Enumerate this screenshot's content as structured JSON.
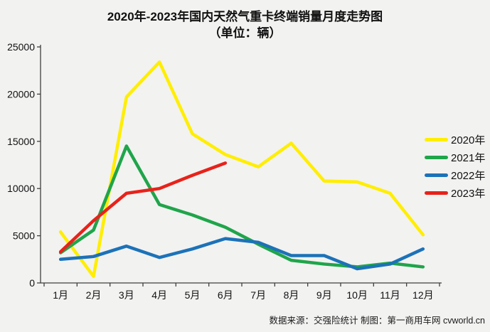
{
  "title": {
    "line1": "2020年-2023年国内天然气重卡终端销量月度走势图",
    "line2": "（单位：辆）"
  },
  "footer": {
    "text": "数据来源：交强险统计 制图：第一商用车网 cvworld.cn"
  },
  "colors": {
    "background": "#f2f2f1",
    "axis": "#3f3f3f",
    "text": "#111111"
  },
  "chart_data": {
    "type": "line",
    "title": "2020年-2023年国内天然气重卡终端销量月度走势图（单位：辆）",
    "categories": [
      "1月",
      "2月",
      "3月",
      "4月",
      "5月",
      "6月",
      "7月",
      "8月",
      "9月",
      "10月",
      "11月",
      "12月"
    ],
    "series": [
      {
        "name": "2020年",
        "color": "#ffee00",
        "values": [
          5400,
          700,
          19700,
          23400,
          15800,
          13600,
          12300,
          14800,
          10800,
          10700,
          9500,
          5100
        ]
      },
      {
        "name": "2021年",
        "color": "#1fa54a",
        "values": [
          3200,
          5600,
          14500,
          8300,
          7200,
          5900,
          4100,
          2400,
          2000,
          1700,
          2100,
          1700
        ]
      },
      {
        "name": "2022年",
        "color": "#1c72b8",
        "values": [
          2500,
          2800,
          3900,
          2700,
          3600,
          4700,
          4300,
          2900,
          2900,
          1500,
          2000,
          3600
        ]
      },
      {
        "name": "2023年",
        "color": "#e8221a",
        "values": [
          3300,
          6600,
          9500,
          10000,
          11400,
          12700
        ]
      }
    ],
    "xlabel": "",
    "ylabel": "",
    "ylim": [
      0,
      25000
    ],
    "yticks": [
      0,
      5000,
      10000,
      15000,
      20000,
      25000
    ],
    "grid": false,
    "legend_position": "right"
  }
}
